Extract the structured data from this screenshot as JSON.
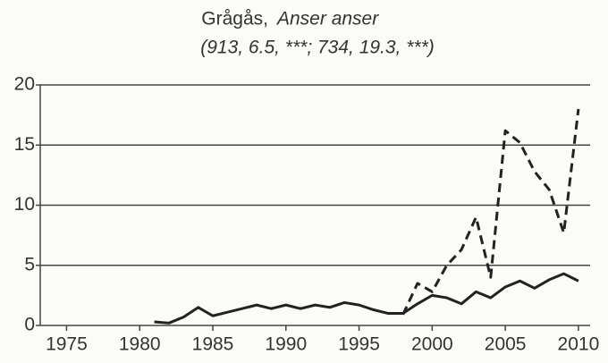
{
  "chart_data": {
    "type": "line",
    "title": "Grågås,",
    "species": "Anser anser",
    "subtitle": "(913, 6.5, ***; 734, 19.3, ***)",
    "x": [
      1981,
      1982,
      1983,
      1984,
      1985,
      1986,
      1987,
      1988,
      1989,
      1990,
      1991,
      1992,
      1993,
      1994,
      1995,
      1996,
      1997,
      1998,
      1999,
      2000,
      2001,
      2002,
      2003,
      2004,
      2005,
      2006,
      2007,
      2008,
      2009,
      2010
    ],
    "series": [
      {
        "color": "#222222",
        "dash": false,
        "values": [
          0.3,
          0.2,
          0.7,
          1.5,
          0.8,
          1.1,
          1.4,
          1.7,
          1.4,
          1.7,
          1.4,
          1.7,
          1.5,
          1.9,
          1.7,
          1.3,
          1.0,
          1.0,
          1.8,
          2.5,
          2.3,
          1.8,
          2.8,
          2.3,
          3.2,
          3.7,
          3.1,
          3.8,
          4.3,
          3.7
        ]
      },
      {
        "color": "#222222",
        "dash": true,
        "values": [
          null,
          null,
          null,
          null,
          null,
          null,
          null,
          null,
          null,
          null,
          null,
          null,
          null,
          null,
          null,
          null,
          null,
          0.9,
          3.5,
          2.8,
          5.0,
          6.3,
          9.0,
          4.0,
          16.2,
          15.2,
          12.8,
          11.3,
          7.7,
          18.0
        ]
      }
    ],
    "xlim": [
      1973.2,
      2010.8
    ],
    "xticks": [
      1975,
      1980,
      1985,
      1990,
      1995,
      2000,
      2005,
      2010
    ],
    "ylim": [
      0,
      20
    ],
    "yticks": [
      0,
      5,
      10,
      15,
      20
    ],
    "grid": true
  }
}
